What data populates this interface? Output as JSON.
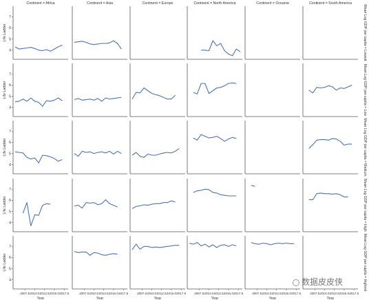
{
  "chart_data": {
    "type": "line",
    "facet_title_template": "Continent = {continent}",
    "row_label_template": "Mean Log GDP per capita = {band}",
    "columns": [
      "Africa",
      "Asia",
      "Europe",
      "North America",
      "Oceania",
      "South America"
    ],
    "rows": [
      "Lowest",
      "Low",
      "Medium",
      "High",
      "Highest"
    ],
    "x": [
      "2005",
      "2006",
      "2007",
      "2008",
      "2009",
      "2010",
      "2011",
      "2012",
      "2013",
      "2014",
      "2015",
      "2016",
      "2017",
      "2018"
    ],
    "x_ticks": [
      "2007.5",
      "2010.0",
      "2012.5",
      "2015.0",
      "2017.5"
    ],
    "ylabel": "Life Ladder",
    "xlabel": "Year",
    "y_ticks": [
      "4",
      "5",
      "6",
      "7"
    ],
    "ylim": [
      3.3,
      7.7
    ],
    "line_color": "#4c72b0",
    "series": {
      "Lowest": {
        "Africa": [
          4.3,
          4.1,
          4.15,
          4.2,
          4.25,
          4.15,
          4.0,
          3.95,
          4.05,
          3.9,
          4.1,
          4.3,
          4.45,
          null
        ],
        "Asia": [
          4.7,
          4.75,
          4.8,
          4.7,
          4.55,
          4.5,
          4.55,
          4.6,
          4.6,
          4.65,
          4.85,
          4.6,
          4.1,
          null
        ],
        "Europe": [
          null,
          null,
          null,
          null,
          null,
          null,
          null,
          null,
          null,
          null,
          null,
          null,
          null,
          null
        ],
        "North America": [
          null,
          null,
          null,
          4.0,
          4.0,
          3.95,
          4.85,
          4.4,
          4.6,
          3.95,
          3.65,
          3.5,
          4.1,
          3.85
        ],
        "Oceania": [
          null,
          null,
          null,
          null,
          null,
          null,
          null,
          null,
          null,
          null,
          null,
          null,
          null,
          null
        ],
        "South America": [
          null,
          null,
          null,
          null,
          null,
          null,
          null,
          null,
          null,
          null,
          null,
          null,
          null,
          null
        ]
      },
      "Low": {
        "Africa": [
          4.5,
          4.55,
          4.75,
          4.55,
          4.85,
          4.55,
          4.45,
          4.1,
          4.6,
          4.55,
          4.65,
          4.85,
          4.6,
          null
        ],
        "Asia": [
          4.7,
          4.8,
          4.65,
          4.7,
          4.75,
          4.65,
          4.8,
          4.55,
          4.85,
          4.75,
          4.8,
          4.85,
          4.9,
          null
        ],
        "Europe": [
          4.75,
          5.35,
          5.3,
          5.75,
          5.5,
          5.25,
          5.15,
          5.05,
          4.9,
          4.75,
          4.75,
          5.1,
          null,
          null
        ],
        "North America": [
          null,
          5.35,
          5.2,
          6.15,
          6.15,
          5.25,
          5.5,
          5.75,
          5.8,
          5.95,
          6.15,
          6.2,
          6.15,
          null
        ],
        "Oceania": [
          null,
          null,
          null,
          null,
          null,
          null,
          null,
          null,
          null,
          null,
          null,
          null,
          null,
          null
        ],
        "South America": [
          null,
          5.55,
          5.3,
          5.8,
          5.75,
          5.8,
          5.95,
          5.85,
          5.55,
          5.75,
          5.7,
          5.85,
          6.0,
          null
        ]
      },
      "Medium": {
        "Africa": [
          5.15,
          5.1,
          5.05,
          4.65,
          4.5,
          4.6,
          4.15,
          4.85,
          4.8,
          4.7,
          4.55,
          4.3,
          4.45,
          null
        ],
        "Asia": [
          5.0,
          4.75,
          5.2,
          5.1,
          5.15,
          5.0,
          5.1,
          5.15,
          5.05,
          5.2,
          4.95,
          5.2,
          5.0,
          null
        ],
        "Europe": [
          4.85,
          5.1,
          4.75,
          4.65,
          4.95,
          4.85,
          4.85,
          4.95,
          5.05,
          5.1,
          5.05,
          5.2,
          5.45,
          null
        ],
        "North America": [
          null,
          6.4,
          6.2,
          6.7,
          6.55,
          6.4,
          6.45,
          6.55,
          6.35,
          6.1,
          6.3,
          6.45,
          6.35,
          null
        ],
        "Oceania": [
          null,
          null,
          null,
          null,
          null,
          null,
          null,
          null,
          null,
          null,
          null,
          null,
          null,
          null
        ],
        "South America": [
          null,
          5.45,
          5.8,
          6.2,
          6.25,
          6.25,
          6.2,
          6.35,
          6.3,
          6.1,
          5.75,
          5.85,
          5.85,
          null
        ]
      },
      "High": {
        "Africa": [
          null,
          null,
          4.85,
          5.8,
          3.7,
          4.7,
          4.65,
          5.55,
          5.7,
          5.65,
          null,
          null,
          null,
          null
        ],
        "Asia": [
          5.5,
          5.55,
          5.3,
          5.8,
          5.75,
          5.8,
          5.6,
          5.7,
          6.05,
          5.7,
          5.55,
          5.4,
          null,
          null
        ],
        "Europe": [
          5.25,
          5.45,
          5.5,
          5.6,
          5.55,
          5.65,
          5.7,
          5.7,
          5.8,
          5.8,
          5.95,
          5.85,
          null,
          null
        ],
        "North America": [
          null,
          6.7,
          6.85,
          6.9,
          7.0,
          6.95,
          6.7,
          6.65,
          6.5,
          6.45,
          6.4,
          6.4,
          6.4,
          null
        ],
        "Oceania": [
          null,
          7.35,
          7.25,
          null,
          null,
          null,
          null,
          null,
          null,
          null,
          null,
          null,
          null,
          null
        ],
        "South America": [
          null,
          6.05,
          6.05,
          6.6,
          6.65,
          6.6,
          6.6,
          6.55,
          6.6,
          6.5,
          6.3,
          6.3,
          null,
          null
        ]
      },
      "Highest": {
        "Africa": [
          null,
          null,
          null,
          null,
          null,
          null,
          null,
          null,
          null,
          null,
          null,
          null,
          null,
          null
        ],
        "Asia": [
          6.55,
          6.45,
          6.5,
          6.5,
          6.2,
          6.45,
          6.4,
          6.25,
          6.2,
          6.3,
          6.35,
          6.3,
          null,
          null
        ],
        "Europe": [
          6.7,
          7.2,
          6.75,
          7.0,
          7.0,
          6.9,
          6.95,
          6.9,
          6.95,
          7.0,
          7.05,
          7.1,
          7.1,
          null
        ],
        "North America": [
          7.3,
          7.2,
          7.35,
          7.05,
          7.2,
          6.95,
          7.15,
          6.9,
          7.1,
          7.15,
          7.0,
          7.15,
          7.05,
          null
        ],
        "Oceania": [
          null,
          7.35,
          7.25,
          7.2,
          7.3,
          7.25,
          7.15,
          7.25,
          7.3,
          7.25,
          7.3,
          7.25,
          7.25,
          null
        ],
        "South America": [
          null,
          null,
          null,
          null,
          null,
          null,
          null,
          null,
          null,
          null,
          null,
          null,
          null,
          null
        ]
      }
    }
  },
  "watermark": "数据皮皮侠"
}
